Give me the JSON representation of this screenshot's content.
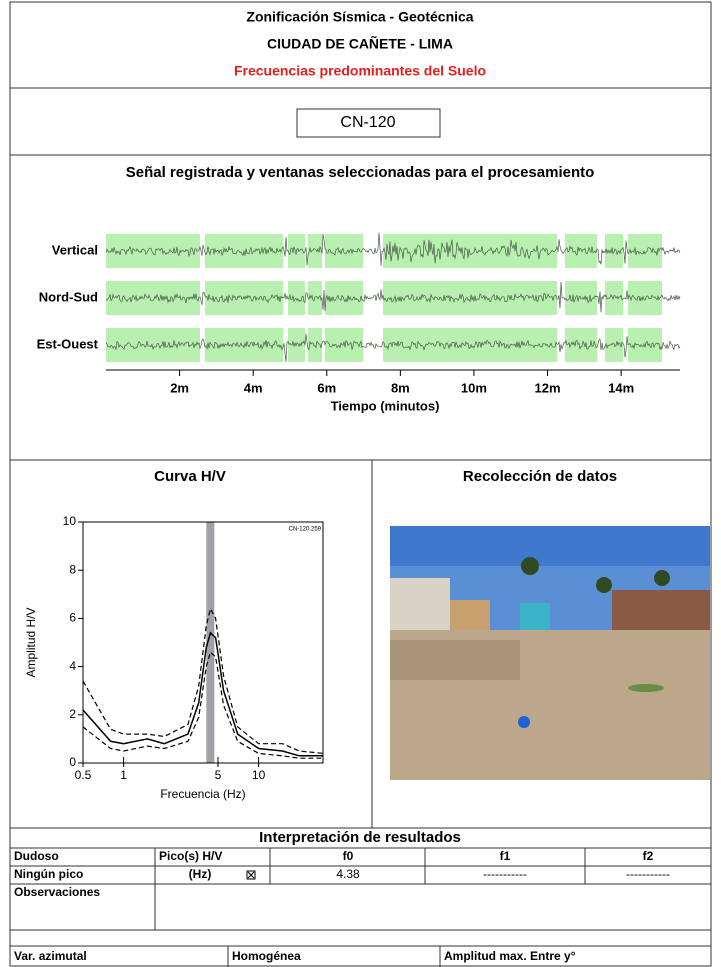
{
  "header": {
    "title": "Zonificación Sísmica - Geotécnica",
    "subtitle": "CIUDAD DE CAÑETE - LIMA",
    "caption": "Frecuencias predominantes del Suelo"
  },
  "station": "CN-120",
  "signal": {
    "title": "Señal registrada y ventanas seleccionadas para el procesamiento",
    "channels": [
      "Vertical",
      "Nord-Sud",
      "Est-Ouest"
    ],
    "xlabel": "Tiempo (minutos)",
    "xlim": [
      0,
      15.6
    ],
    "xticks": [
      {
        "value": 2,
        "label": "2m"
      },
      {
        "value": 4,
        "label": "4m"
      },
      {
        "value": 6,
        "label": "6m"
      },
      {
        "value": 8,
        "label": "8m"
      },
      {
        "value": 10,
        "label": "10m"
      },
      {
        "value": 12,
        "label": "12m"
      },
      {
        "value": 14,
        "label": "14m"
      }
    ]
  },
  "hv": {
    "section_title": "Curva H/V",
    "chart_data": {
      "type": "line",
      "annotation": "CN-120.259",
      "xlabel": "Frecuencia (Hz)",
      "ylabel": "Amplitud H/V",
      "log_x": true,
      "xlim": [
        0.5,
        30
      ],
      "ylim": [
        0,
        10
      ],
      "xticks": [
        0.5,
        1,
        5,
        10
      ],
      "yticks": [
        0,
        2,
        4,
        6,
        8,
        10
      ],
      "band": [
        4.1,
        4.7
      ],
      "band_color": "#a0a0a8",
      "x": [
        0.5,
        0.8,
        1,
        1.5,
        2,
        3,
        3.6,
        4.1,
        4.4,
        4.8,
        5.5,
        7,
        10,
        15,
        20,
        30
      ],
      "series": [
        {
          "color": "#000000",
          "style": "solid",
          "values": [
            2.2,
            0.9,
            0.8,
            1.0,
            0.8,
            1.2,
            2.5,
            4.8,
            5.4,
            5.2,
            3.0,
            1.2,
            0.6,
            0.5,
            0.3,
            0.3
          ]
        },
        {
          "color": "#000000",
          "style": "dashed",
          "values": [
            3.4,
            1.4,
            1.2,
            1.2,
            1.1,
            1.6,
            3.2,
            5.7,
            6.4,
            6.0,
            3.6,
            1.5,
            0.8,
            0.8,
            0.5,
            0.4
          ]
        },
        {
          "color": "#000000",
          "style": "dashed",
          "values": [
            1.5,
            0.6,
            0.5,
            0.7,
            0.6,
            0.9,
            1.9,
            4.0,
            4.6,
            4.4,
            2.4,
            0.9,
            0.4,
            0.3,
            0.2,
            0.2
          ]
        }
      ]
    }
  },
  "photo": {
    "title": "Recolección de datos"
  },
  "table": {
    "title": "Interpretación de resultados",
    "rows": [
      [
        "Dudoso",
        "Pico(s) H/V",
        "f0",
        "f1",
        "f2"
      ],
      [
        "Ningún pico",
        "(Hz)",
        "4.38",
        "-----------",
        "-----------"
      ],
      [
        "Observaciones"
      ],
      [
        "Var. azimutal",
        "Homogénea",
        "Amplitud max. Entre y°"
      ]
    ]
  }
}
